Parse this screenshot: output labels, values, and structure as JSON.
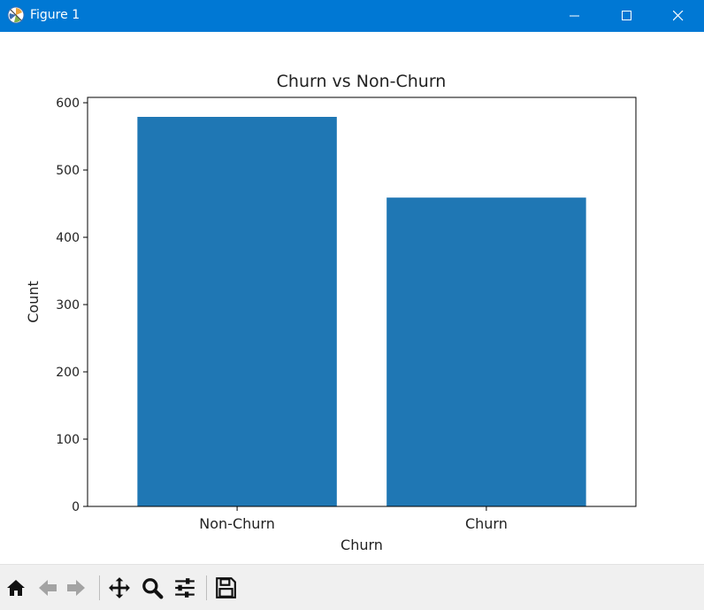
{
  "window": {
    "title": "Figure 1"
  },
  "toolbar": {
    "tools": [
      "home-icon",
      "back-icon",
      "forward-icon",
      "pan-icon",
      "zoom-icon",
      "configure-subplots-icon",
      "save-icon"
    ]
  },
  "colors": {
    "titlebar": "#0078d4",
    "bar": "#1f77b4",
    "toolbar_bg": "#f0f0f0"
  },
  "chart_data": {
    "type": "bar",
    "title": "Churn vs Non-Churn",
    "xlabel": "Churn",
    "ylabel": "Count",
    "categories": [
      "Non-Churn",
      "Churn"
    ],
    "values": [
      579,
      459
    ],
    "ylim": [
      0,
      607.95
    ],
    "yticks": [
      0,
      100,
      200,
      300,
      400,
      500,
      600
    ],
    "grid": false
  }
}
